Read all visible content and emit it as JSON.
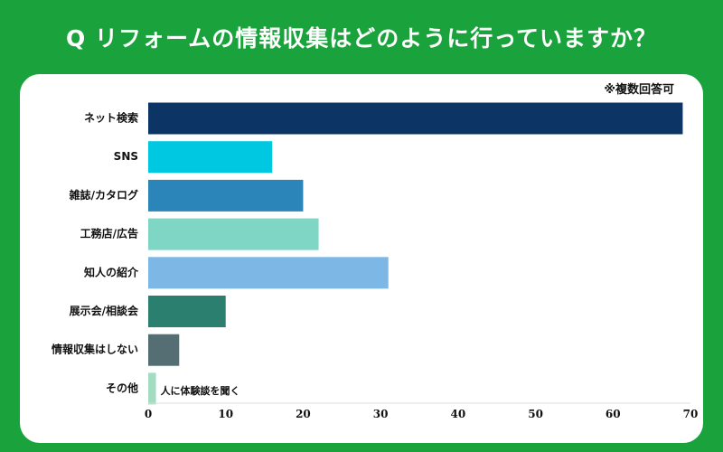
{
  "header": {
    "question": "Q リフォームの情報収集はどのように行っていますか？"
  },
  "chart_data": {
    "type": "bar",
    "orientation": "horizontal",
    "note": "※複数回答可",
    "categories": [
      "ネット検索",
      "SNS",
      "雑誌/カタログ",
      "工務店/広告",
      "知人の紹介",
      "展示会/相談会",
      "情報収集はしない",
      "その他"
    ],
    "values": [
      69,
      16,
      20,
      22,
      31,
      10,
      4,
      1
    ],
    "colors": [
      "#0c3566",
      "#00c8e0",
      "#2b85b8",
      "#7fd6c4",
      "#7db7e6",
      "#2a7f6e",
      "#546e73",
      "#a4dcc2"
    ],
    "annotations": [
      {
        "category": "その他",
        "text": "人に体験談を聞く"
      }
    ],
    "xlim": [
      0,
      70
    ],
    "xticks": [
      0,
      10,
      20,
      30,
      40,
      50,
      60,
      70
    ],
    "grid": false,
    "legend": "none"
  }
}
